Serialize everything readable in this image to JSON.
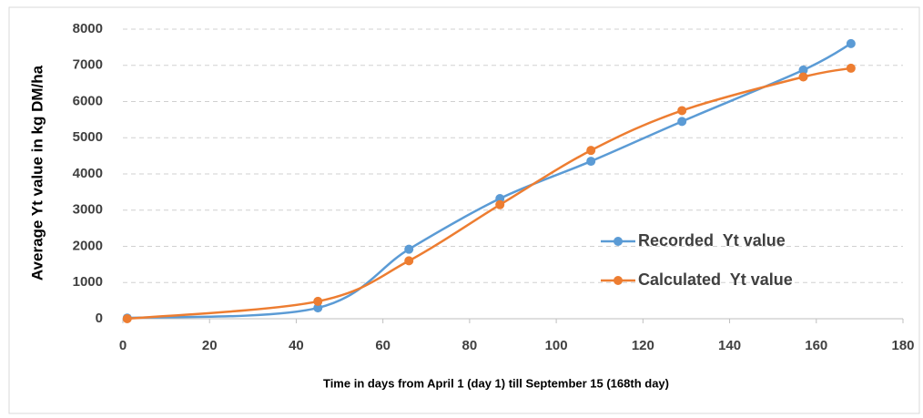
{
  "chart_data": {
    "type": "line",
    "y_label": "Average Yt value in kg DM/ha",
    "x_label": "Time in days from April 1 (day 1) till September 15 (168th day)",
    "xlim": [
      0,
      180
    ],
    "xticks": [
      0,
      20,
      40,
      60,
      80,
      100,
      120,
      140,
      160,
      180
    ],
    "ylim": [
      0,
      8000
    ],
    "yticks": [
      0,
      1000,
      2000,
      3000,
      4000,
      5000,
      6000,
      7000,
      8000
    ],
    "grid": true,
    "legend": "right",
    "series": [
      {
        "name": "Recorded  Yt value",
        "color": "#5b9bd5",
        "x": [
          1,
          45,
          66,
          87,
          108,
          129,
          157,
          168
        ],
        "values": [
          20,
          300,
          1920,
          3320,
          4350,
          5450,
          6870,
          7600
        ]
      },
      {
        "name": "Calculated  Yt value",
        "color": "#ed7d31",
        "x": [
          1,
          45,
          66,
          87,
          108,
          129,
          157,
          168
        ],
        "values": [
          0,
          480,
          1600,
          3150,
          4650,
          5750,
          6680,
          6920
        ]
      }
    ]
  }
}
